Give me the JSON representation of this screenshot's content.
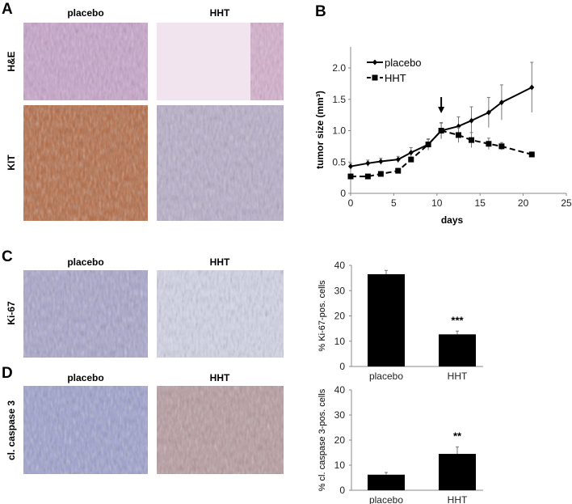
{
  "panels": {
    "A": {
      "letter": "A",
      "columns": [
        "placebo",
        "HHT"
      ],
      "rows": [
        "H&E",
        "KIT"
      ]
    },
    "B": {
      "letter": "B"
    },
    "C": {
      "letter": "C",
      "columns": [
        "placebo",
        "HHT"
      ],
      "row": "Ki-67"
    },
    "D": {
      "letter": "D",
      "columns": [
        "placebo",
        "HHT"
      ],
      "row": "cl. caspase 3"
    }
  },
  "colors": {
    "he_stain": "#d9b6d6",
    "kit_stain": "#b86a45",
    "hematoxylin": "#8c8ac0",
    "ink": "#000000"
  },
  "chart_data": [
    {
      "type": "line",
      "panel": "B",
      "xlabel": "days",
      "ylabel": "tumor size (mm³)",
      "xlim": [
        0,
        25
      ],
      "ylim": [
        0,
        2.0
      ],
      "xticks": [
        "0",
        "5",
        "10",
        "15",
        "20",
        "25"
      ],
      "yticks": [
        "0",
        "0.5",
        "1.0",
        "1.5",
        "2.0"
      ],
      "legend": "top-left",
      "annotation": "arrow at day 10.5",
      "x": [
        0,
        2,
        3.5,
        5.5,
        7,
        9,
        10.5,
        12.5,
        14,
        16,
        17.5,
        21
      ],
      "series": [
        {
          "name": "placebo",
          "style": "solid-diamond",
          "values": [
            0.43,
            0.48,
            0.51,
            0.54,
            0.65,
            0.78,
            1.0,
            1.07,
            1.16,
            1.29,
            1.45,
            1.69
          ],
          "errors": [
            0.05,
            0.05,
            0.05,
            0.05,
            0.08,
            0.09,
            0.13,
            0.15,
            0.22,
            0.24,
            0.28,
            0.4
          ]
        },
        {
          "name": "HHT",
          "style": "dashed-square",
          "values": [
            0.27,
            0.27,
            0.31,
            0.36,
            0.54,
            0.78,
            1.0,
            0.93,
            0.85,
            0.79,
            0.75,
            0.62
          ],
          "errors": [
            0.02,
            0.02,
            0.02,
            0.04,
            0.04,
            0.08,
            0.12,
            0.12,
            0.12,
            0.09,
            0.06,
            0.04
          ]
        }
      ]
    },
    {
      "type": "bar",
      "panel": "C",
      "categories": [
        "placebo",
        "HHT"
      ],
      "values": [
        36.5,
        12.7
      ],
      "errors": [
        1.5,
        1.3
      ],
      "significance": [
        "",
        "***"
      ],
      "ylabel": "% Ki-67-pos. cells",
      "ylim": [
        0,
        40
      ],
      "yticks": [
        "0",
        "10",
        "20",
        "30",
        "40"
      ]
    },
    {
      "type": "bar",
      "panel": "D",
      "categories": [
        "placebo",
        "HHT"
      ],
      "values": [
        6.2,
        14.5
      ],
      "errors": [
        0.9,
        2.8
      ],
      "significance": [
        "",
        "**"
      ],
      "ylabel": "% cl. caspase 3-pos. cells",
      "ylim": [
        0,
        40
      ],
      "yticks": [
        "0",
        "10",
        "20",
        "30",
        "40"
      ]
    }
  ]
}
